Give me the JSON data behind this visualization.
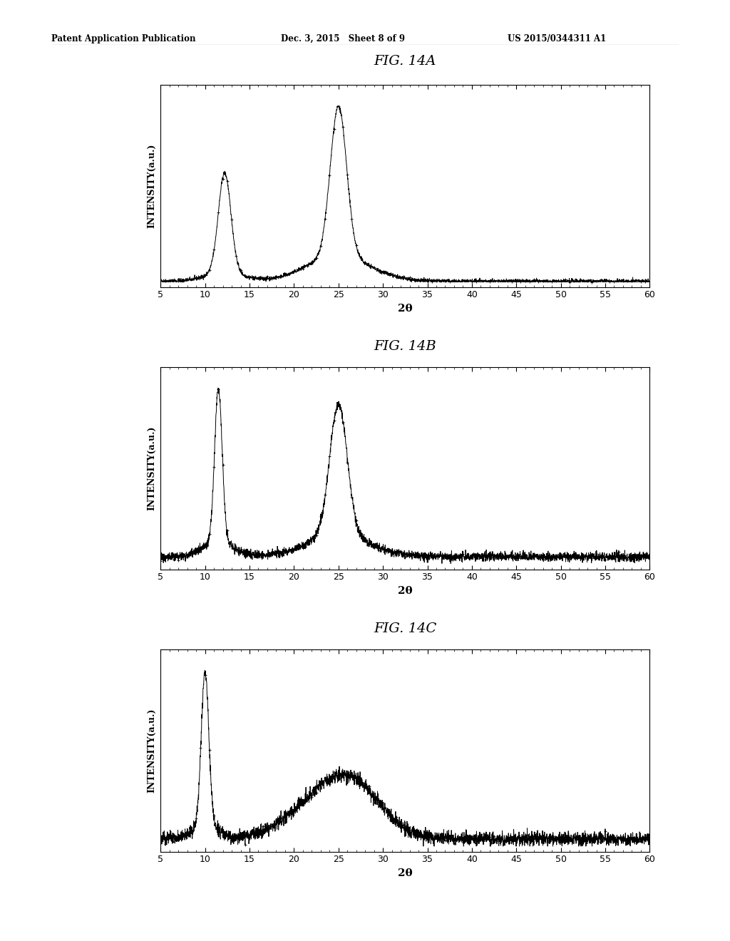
{
  "header_left": "Patent Application Publication",
  "header_center": "Dec. 3, 2015   Sheet 8 of 9",
  "header_right": "US 2015/0344311 A1",
  "fig_titles": [
    "FIG. 14A",
    "FIG. 14B",
    "FIG. 14C"
  ],
  "xlabel": "2θ",
  "ylabel": "INTENSITY(a.u.)",
  "xlim": [
    5,
    60
  ],
  "xticks": [
    5,
    10,
    15,
    20,
    25,
    30,
    35,
    40,
    45,
    50,
    55,
    60
  ],
  "background_color": "#ffffff",
  "line_color": "#000000",
  "panel_bg": "#ffffff"
}
